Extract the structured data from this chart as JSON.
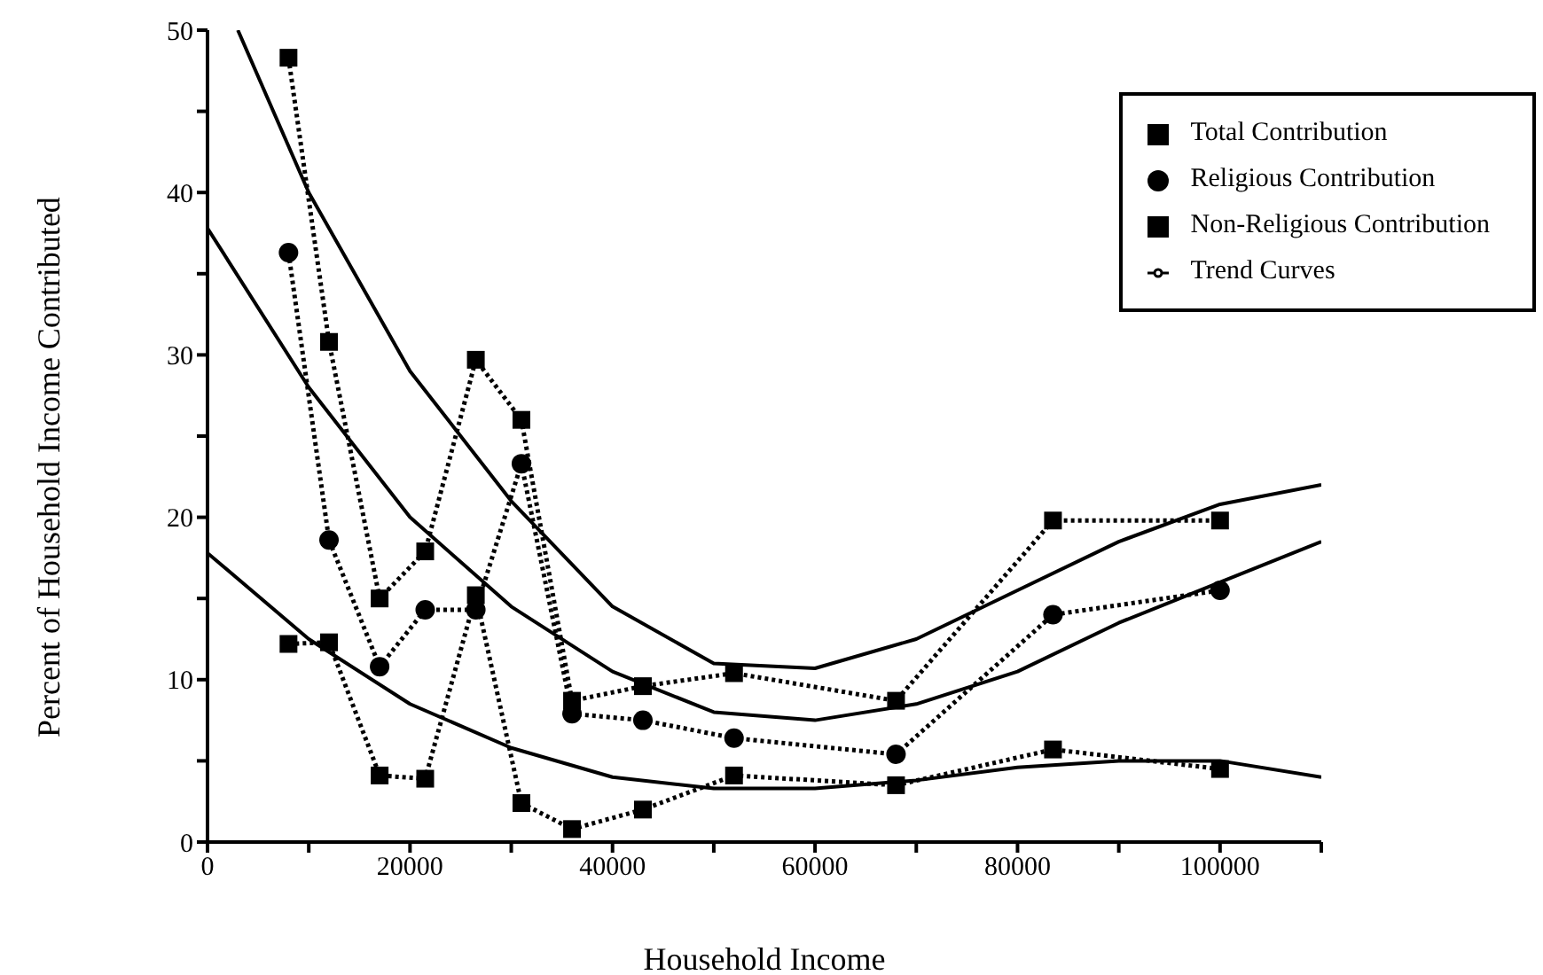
{
  "chart_data": {
    "type": "line",
    "xlabel": "Household Income",
    "ylabel": "Percent of Household Income Contributed",
    "xlim": [
      0,
      110000
    ],
    "ylim": [
      0,
      50
    ],
    "xticks": [
      0,
      {
        "value": 10000,
        "label": null
      },
      20000,
      {
        "value": 30000,
        "label": null
      },
      40000,
      {
        "value": 50000,
        "label": null
      },
      60000,
      {
        "value": 70000,
        "label": null
      },
      80000,
      {
        "value": 90000,
        "label": null
      },
      100000,
      {
        "value": 110000,
        "label": null
      }
    ],
    "yticks": [
      0,
      {
        "value": 5,
        "label": null
      },
      10,
      {
        "value": 15,
        "label": null
      },
      20,
      {
        "value": 25,
        "label": null
      },
      30,
      {
        "value": 35,
        "label": null
      },
      40,
      {
        "value": 45,
        "label": null
      },
      50
    ],
    "grid": false,
    "legend": "top right",
    "x": [
      8000,
      12000,
      17000,
      21500,
      26500,
      31000,
      36000,
      43000,
      52000,
      68000,
      83500,
      100000
    ],
    "series": [
      {
        "name": "Total Contribution",
        "color": "#000000",
        "marker": "square",
        "line_style": "dotted",
        "values": [
          48.3,
          30.8,
          15,
          17.9,
          29.7,
          26,
          8.7,
          9.6,
          10.4,
          8.7,
          19.8,
          19.8
        ]
      },
      {
        "name": "Religious Contribution",
        "color": "#000000",
        "marker": "circle",
        "line_style": "dotted",
        "values": [
          36.3,
          18.6,
          10.8,
          14.3,
          14.3,
          23.3,
          7.9,
          7.5,
          6.4,
          5.4,
          14,
          15.5
        ]
      },
      {
        "name": "Non-Religious Contribution",
        "color": "#000000",
        "marker": "square",
        "line_style": "dotted",
        "values": [
          12.2,
          12.3,
          4.1,
          3.9,
          15.2,
          2.4,
          0.8,
          2,
          4.1,
          3.5,
          5.7,
          4.5
        ]
      },
      {
        "name": "Trend Curves",
        "type": "line",
        "color": "#000000",
        "marker": "none",
        "line_style": "solid",
        "x": [
          3000,
          10000,
          20000,
          30000,
          40000,
          50000,
          60000,
          70000,
          80000,
          90000,
          100000,
          110000
        ],
        "values": [
          50,
          40,
          29,
          21,
          14.5,
          11,
          10.7,
          12.5,
          15.5,
          18.5,
          20.8,
          22
        ]
      },
      {
        "type": "line",
        "color": "#000000",
        "marker": "none",
        "line_style": "solid",
        "x": [
          0,
          10000,
          20000,
          30000,
          40000,
          50000,
          60000,
          70000,
          80000,
          90000,
          100000,
          110000
        ],
        "values": [
          37.8,
          28,
          20,
          14.5,
          10.5,
          8,
          7.5,
          8.5,
          10.5,
          13.5,
          16,
          18.5
        ]
      },
      {
        "type": "line",
        "color": "#000000",
        "marker": "none",
        "line_style": "solid",
        "x": [
          0,
          10000,
          20000,
          30000,
          40000,
          50000,
          60000,
          70000,
          80000,
          90000,
          100000,
          110000
        ],
        "values": [
          17.8,
          12.5,
          8.5,
          5.8,
          4,
          3.3,
          3.3,
          3.8,
          4.6,
          5,
          5,
          4
        ]
      }
    ]
  }
}
